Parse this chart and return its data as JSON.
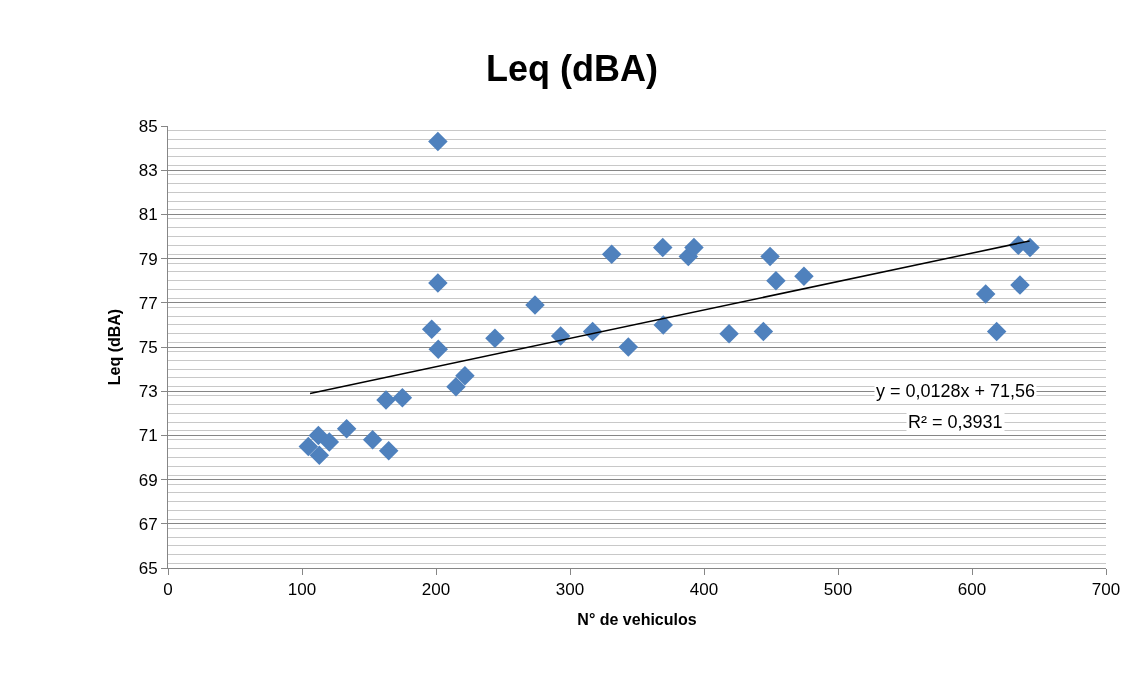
{
  "chart_data": {
    "type": "scatter",
    "title": "Leq (dBA)",
    "xlabel": "N° de vehiculos",
    "ylabel": "Leq (dBA)",
    "series": [
      {
        "color": "#4f81bd",
        "marker": "diamond",
        "x": [
          104.7,
          112.2,
          112.9,
          120.4,
          133.3,
          152.7,
          164.7,
          162.7,
          174.9,
          196.8,
          201.7,
          201.4,
          201.4,
          214.9,
          221.6,
          244,
          273.9,
          293,
          316.9,
          331.1,
          343.5,
          369.2,
          369.6,
          388.3,
          392.5,
          418.7,
          444.3,
          449.3,
          453.7,
          474.6,
          634.6,
          643.3,
          635.8,
          610.2,
          618.4
        ],
        "values": [
          70.5,
          71.0,
          70.1,
          70.7,
          71.3,
          70.8,
          70.3,
          72.6,
          72.7,
          75.8,
          74.9,
          77.9,
          84.3,
          73.2,
          73.7,
          75.4,
          76.9,
          75.5,
          75.7,
          79.2,
          75.0,
          79.5,
          76.0,
          79.1,
          79.5,
          75.6,
          75.7,
          79.1,
          78.0,
          78.2,
          79.6,
          79.5,
          77.8,
          77.4,
          75.7
        ]
      },
      {
        "type": "line",
        "color": "#000000",
        "line_style": "solid",
        "x": [
          106,
          643
        ],
        "values": [
          72.9,
          79.8
        ]
      }
    ],
    "annotations": [
      "y = 0,0128x + 71,56",
      "R² = 0,3931"
    ],
    "xlim": [
      0,
      700
    ],
    "xticks": [
      0,
      100,
      200,
      300,
      400,
      500,
      600,
      700
    ],
    "ylim": [
      65,
      85
    ],
    "yticks": [
      65,
      67,
      69,
      71,
      73,
      75,
      77,
      79,
      81,
      83,
      85
    ],
    "grid": "y"
  }
}
